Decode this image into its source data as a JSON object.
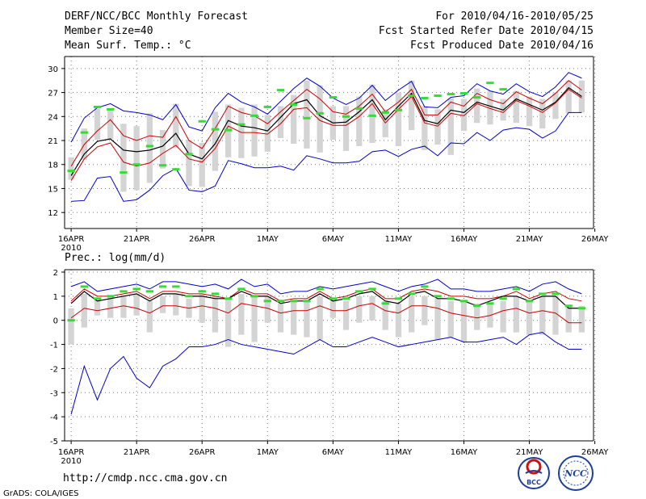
{
  "header": {
    "title": "DERF/NCC/BCC Monthly Forecast",
    "member_size": "Member Size=40",
    "variable": "Mean Surf. Temp.: °C",
    "period": "For 2010/04/16-2010/05/25",
    "refer_date": "Fcst Started Refer Date 2010/04/15",
    "produced_date": "Fcst Produced Date 2010/04/16"
  },
  "footer": {
    "url": "http://cmdp.ncc.cma.gov.cn",
    "credit": "GrADS: COLA/IGES",
    "logo_bcc": "BCC",
    "logo_ncc": "NCC"
  },
  "colors": {
    "max_min_line": "#0000cc",
    "spread_line": "#cc0000",
    "mean_line": "#000000",
    "box": "#d4d4d4",
    "obs_dash": "#33dd33",
    "grid": "#777777"
  },
  "chart_data": [
    {
      "type": "line",
      "title": "Mean Surf. Temp.: °C",
      "x_labels": [
        "16APR",
        "21APR",
        "26APR",
        "1MAY",
        "6MAY",
        "11MAY",
        "16MAY",
        "21MAY",
        "26MAY"
      ],
      "x_year": "2010",
      "x_label_days": [
        0,
        5,
        10,
        15,
        20,
        25,
        30,
        35,
        40
      ],
      "x_range": [
        0,
        40
      ],
      "ylim": [
        10,
        31.5
      ],
      "yticks": [
        12,
        15,
        18,
        21,
        24,
        27,
        30
      ],
      "days": [
        0,
        1,
        2,
        3,
        4,
        5,
        6,
        7,
        8,
        9,
        10,
        11,
        12,
        13,
        14,
        15,
        16,
        17,
        18,
        19,
        20,
        21,
        22,
        23,
        24,
        25,
        26,
        27,
        28,
        29,
        30,
        31,
        32,
        33,
        34,
        35,
        36,
        37,
        38,
        39
      ],
      "series": [
        {
          "name": "max",
          "values": [
            20.8,
            23.8,
            25.1,
            25.6,
            24.7,
            24.5,
            24.2,
            23.6,
            25.5,
            22.7,
            22.2,
            25.1,
            26.9,
            25.8,
            25.2,
            24.3,
            25.9,
            27.5,
            28.8,
            27.8,
            26.3,
            25.5,
            26.3,
            27.9,
            26.0,
            27.3,
            28.4,
            25.2,
            25.1,
            26.4,
            26.6,
            28.1,
            27.2,
            26.8,
            28.1,
            27.1,
            26.5,
            27.7,
            29.5,
            28.8
          ]
        },
        {
          "name": "upper",
          "values": [
            17.8,
            20.5,
            22.2,
            23.6,
            21.6,
            21.0,
            21.6,
            21.4,
            24.0,
            21.0,
            20.0,
            22.5,
            25.3,
            24.5,
            24.1,
            23.1,
            24.6,
            26.0,
            27.4,
            26.2,
            24.6,
            24.3,
            25.3,
            26.8,
            24.6,
            25.8,
            27.4,
            24.2,
            24.2,
            25.8,
            25.3,
            26.9,
            26.1,
            25.6,
            27.1,
            26.3,
            25.6,
            26.9,
            28.5,
            27.3
          ]
        },
        {
          "name": "mean",
          "values": [
            16.6,
            19.3,
            20.9,
            21.2,
            19.8,
            19.6,
            19.8,
            20.3,
            21.9,
            19.3,
            18.7,
            20.6,
            23.5,
            22.8,
            22.6,
            22.2,
            23.9,
            25.6,
            26.1,
            24.1,
            23.2,
            23.3,
            24.6,
            26.1,
            23.6,
            25.3,
            26.9,
            23.5,
            23.1,
            24.8,
            24.5,
            25.8,
            25.3,
            24.8,
            26.2,
            25.5,
            24.8,
            25.8,
            27.6,
            26.5
          ]
        },
        {
          "name": "lower",
          "values": [
            16.0,
            18.7,
            20.2,
            20.7,
            18.3,
            17.8,
            18.2,
            19.4,
            20.4,
            18.7,
            18.3,
            20.0,
            22.8,
            22.0,
            22.0,
            21.8,
            23.1,
            24.9,
            25.1,
            23.5,
            22.9,
            22.9,
            24.0,
            25.6,
            23.2,
            24.9,
            26.5,
            23.2,
            22.8,
            24.4,
            24.1,
            25.6,
            25.0,
            24.5,
            26.0,
            25.3,
            24.5,
            25.7,
            27.4,
            26.3
          ]
        },
        {
          "name": "min",
          "values": [
            13.4,
            13.5,
            16.3,
            16.5,
            13.4,
            13.6,
            14.8,
            16.6,
            17.5,
            14.8,
            14.6,
            15.3,
            18.5,
            18.1,
            17.6,
            17.6,
            17.8,
            17.3,
            19.1,
            18.7,
            18.2,
            18.2,
            18.4,
            19.6,
            19.8,
            19.0,
            19.9,
            20.3,
            19.1,
            20.7,
            20.6,
            22.0,
            21.0,
            22.3,
            22.6,
            22.4,
            21.3,
            22.2,
            24.5,
            24.5
          ]
        }
      ],
      "box_low": [
        16.1,
        18.6,
        21.1,
        21.2,
        14.6,
        14.8,
        15.7,
        17.5,
        20.1,
        15.3,
        15.2,
        17.2,
        18.9,
        18.8,
        19.0,
        19.6,
        21.3,
        20.6,
        20.0,
        19.5,
        21.1,
        19.7,
        20.3,
        20.7,
        21.4,
        20.3,
        22.3,
        19.8,
        20.5,
        19.2,
        22.2,
        23.2,
        23.0,
        23.5,
        23.2,
        22.8,
        22.5,
        23.7,
        24.4,
        24.5
      ],
      "box_high": [
        18.9,
        22.5,
        25.0,
        24.9,
        23.1,
        22.8,
        24.4,
        22.3,
        25.6,
        21.1,
        20.7,
        24.6,
        25.5,
        25.1,
        25.5,
        24.2,
        25.3,
        26.7,
        28.5,
        27.9,
        25.3,
        25.3,
        26.5,
        28.0,
        24.9,
        27.0,
        28.5,
        25.3,
        24.9,
        26.3,
        26.2,
        27.5,
        27.2,
        26.2,
        27.2,
        26.5,
        26.2,
        27.0,
        28.5,
        28.5
      ],
      "obs": [
        17.2,
        22.0,
        25.2,
        24.9,
        17.0,
        18.0,
        20.3,
        17.9,
        17.4,
        19.3,
        23.4,
        22.4,
        22.3,
        23.0,
        24.1,
        25.2,
        27.3,
        25.5,
        23.8,
        24.4,
        26.4,
        24.0,
        25.0,
        24.1,
        24.5,
        24.8,
        26.6,
        26.3,
        26.6,
        26.8,
        26.9,
        26.4,
        28.2,
        27.4
      ]
    },
    {
      "type": "line",
      "title": "Prec.: log(mm/d)",
      "x_labels": [
        "16APR",
        "21APR",
        "26APR",
        "1MAY",
        "6MAY",
        "11MAY",
        "16MAY",
        "21MAY",
        "26MAY"
      ],
      "x_year": "2010",
      "x_label_days": [
        0,
        5,
        10,
        15,
        20,
        25,
        30,
        35,
        40
      ],
      "x_range": [
        0,
        40
      ],
      "ylim": [
        -5,
        2.1
      ],
      "yticks": [
        -5,
        -4,
        -3,
        -2,
        -1,
        0,
        1,
        2
      ],
      "days": [
        0,
        1,
        2,
        3,
        4,
        5,
        6,
        7,
        8,
        9,
        10,
        11,
        12,
        13,
        14,
        15,
        16,
        17,
        18,
        19,
        20,
        21,
        22,
        23,
        24,
        25,
        26,
        27,
        28,
        29,
        30,
        31,
        32,
        33,
        34,
        35,
        36,
        37,
        38,
        39
      ],
      "series": [
        {
          "name": "max",
          "values": [
            1.4,
            1.6,
            1.2,
            1.3,
            1.4,
            1.5,
            1.3,
            1.6,
            1.6,
            1.5,
            1.4,
            1.5,
            1.3,
            1.7,
            1.4,
            1.5,
            1.1,
            1.2,
            1.2,
            1.4,
            1.3,
            1.4,
            1.5,
            1.6,
            1.4,
            1.2,
            1.4,
            1.5,
            1.7,
            1.3,
            1.3,
            1.2,
            1.2,
            1.3,
            1.4,
            1.2,
            1.5,
            1.6,
            1.3,
            1.1
          ]
        },
        {
          "name": "upper",
          "values": [
            0.8,
            1.3,
            1.0,
            1.0,
            1.1,
            1.2,
            0.9,
            1.2,
            1.2,
            1.1,
            1.1,
            1.0,
            0.9,
            1.3,
            1.1,
            1.1,
            0.8,
            0.9,
            0.9,
            1.2,
            0.9,
            1.0,
            1.2,
            1.3,
            0.9,
            0.9,
            1.2,
            1.3,
            1.2,
            1.0,
            1.0,
            0.9,
            0.9,
            1.0,
            1.2,
            0.9,
            1.1,
            1.2,
            0.9,
            0.8
          ]
        },
        {
          "name": "mean",
          "values": [
            0.7,
            1.2,
            0.8,
            0.9,
            1.0,
            1.1,
            0.8,
            1.1,
            1.1,
            1.0,
            1.0,
            0.9,
            0.9,
            1.2,
            1.0,
            1.0,
            0.7,
            0.8,
            0.8,
            1.1,
            0.8,
            0.9,
            1.1,
            1.2,
            0.8,
            0.7,
            1.1,
            1.2,
            0.9,
            0.9,
            0.8,
            0.6,
            0.8,
            1.0,
            1.0,
            0.8,
            1.0,
            1.0,
            0.5,
            0.5
          ]
        },
        {
          "name": "lower",
          "values": [
            0.1,
            0.5,
            0.4,
            0.5,
            0.6,
            0.5,
            0.3,
            0.6,
            0.6,
            0.5,
            0.6,
            0.5,
            0.3,
            0.7,
            0.6,
            0.5,
            0.3,
            0.4,
            0.4,
            0.6,
            0.4,
            0.4,
            0.6,
            0.7,
            0.4,
            0.3,
            0.6,
            0.6,
            0.5,
            0.3,
            0.2,
            0.1,
            0.2,
            0.4,
            0.5,
            0.3,
            0.4,
            0.3,
            -0.1,
            -0.1
          ]
        },
        {
          "name": "min",
          "values": [
            -3.9,
            -1.9,
            -3.3,
            -2.0,
            -1.5,
            -2.4,
            -2.8,
            -1.9,
            -1.6,
            -1.1,
            -1.1,
            -1.0,
            -0.8,
            -1.0,
            -1.1,
            -1.2,
            -1.3,
            -1.4,
            -1.1,
            -0.8,
            -1.1,
            -1.1,
            -0.9,
            -0.7,
            -0.9,
            -1.1,
            -1.0,
            -0.9,
            -0.8,
            -0.7,
            -0.9,
            -0.9,
            -0.8,
            -0.7,
            -1.0,
            -0.6,
            -0.5,
            -0.9,
            -1.2,
            -1.2
          ]
        },
        {
          "name": "obs",
          "values": [
            0.0,
            1.4,
            0.9,
            1.0,
            1.2,
            1.3,
            1.2,
            1.4,
            1.4,
            1.0,
            1.2,
            1.1,
            0.9,
            1.3,
            1.0,
            0.8,
            0.8,
            0.8,
            0.8,
            1.3,
            0.9,
            0.9,
            1.2,
            1.3,
            0.7,
            0.9,
            1.1,
            1.4,
            1.0,
            0.9,
            0.8,
            0.6,
            0.7,
            0.9,
            1.3,
            0.8,
            1.1,
            1.1,
            0.6,
            0.5
          ]
        }
      ],
      "box_low": [
        -1.0,
        -0.3,
        0.2,
        0.1,
        0.1,
        0.2,
        -0.5,
        0.3,
        0.2,
        0.1,
        -0.1,
        -0.5,
        -1.1,
        -0.6,
        -0.9,
        -0.1,
        -0.5,
        -0.6,
        -0.7,
        -0.8,
        0.1,
        -0.4,
        -0.1,
        0.0,
        -0.4,
        -0.7,
        -0.5,
        -0.2,
        -0.8,
        -0.7,
        -0.9,
        -0.4,
        -0.3,
        -0.5,
        -0.5,
        -0.6,
        -0.6,
        -0.6,
        -0.5,
        -0.5
      ],
      "box_high": [
        0.5,
        1.1,
        0.9,
        1.0,
        1.0,
        1.1,
        0.8,
        1.0,
        1.1,
        0.9,
        1.1,
        1.0,
        0.9,
        1.1,
        1.0,
        1.0,
        0.7,
        0.8,
        0.8,
        1.0,
        0.9,
        0.8,
        1.0,
        1.0,
        0.8,
        0.7,
        1.0,
        1.0,
        0.9,
        0.8,
        0.8,
        0.7,
        0.7,
        0.8,
        1.0,
        0.8,
        1.0,
        1.0,
        0.6,
        0.6
      ]
    }
  ]
}
